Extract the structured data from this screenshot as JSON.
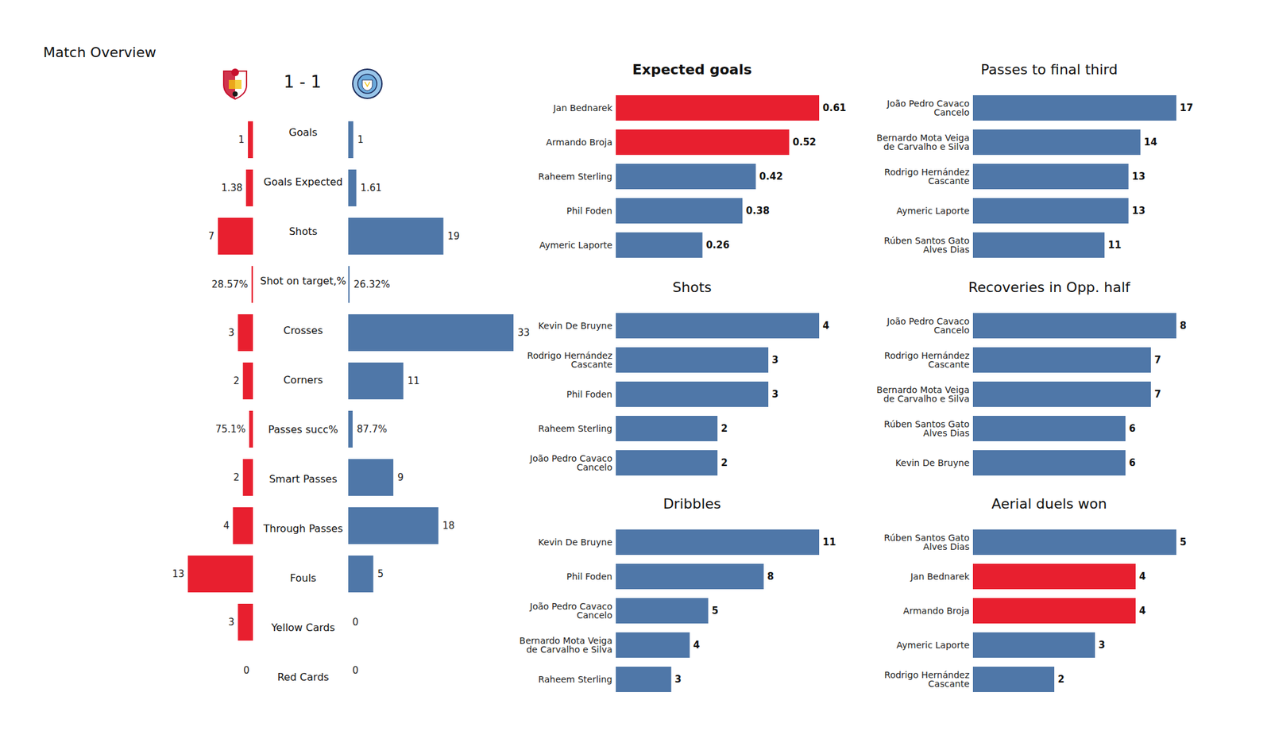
{
  "chart_data": [
    {
      "type": "bar",
      "orientation": "horizontal",
      "title": "Match Overview",
      "annotations": [
        "1 - 1"
      ],
      "categories": [
        "Goals",
        "Goals Expected",
        "Shots",
        "Shot on target,%",
        "Crosses",
        "Corners",
        "Passes succ%",
        "Smart Passes",
        "Through Passes",
        "Fouls",
        "Yellow Cards",
        "Red Cards"
      ],
      "series": [
        {
          "color": "#e81f2f",
          "values": [
            1,
            1.38,
            7,
            0.2857,
            3,
            2,
            0.751,
            2,
            4,
            13,
            3,
            0
          ],
          "value_labels": [
            "1",
            "1.38",
            "7",
            "28.57%",
            "3",
            "2",
            "75.1%",
            "2",
            "4",
            "13",
            "3",
            "0"
          ]
        },
        {
          "color": "#4f77a8",
          "values": [
            1,
            1.61,
            19,
            0.2632,
            33,
            11,
            0.877,
            9,
            18,
            5,
            0,
            0
          ],
          "value_labels": [
            "1",
            "1.61",
            "19",
            "26.32%",
            "33",
            "11",
            "87.7%",
            "9",
            "18",
            "5",
            "0",
            "0"
          ]
        }
      ],
      "xlim": [
        0,
        33
      ],
      "data_labels": true,
      "tick_labels": false
    },
    {
      "type": "bar",
      "orientation": "horizontal",
      "title": "Expected goals",
      "categories": [
        "Jan Bednarek",
        "Armando Broja",
        "Raheem Sterling",
        "Phil Foden",
        "Aymeric Laporte"
      ],
      "values": [
        0.61,
        0.52,
        0.42,
        0.38,
        0.26
      ],
      "colors": [
        "#e81f2f",
        "#e81f2f",
        "#4f77a8",
        "#4f77a8",
        "#4f77a8"
      ],
      "xlim": [
        0,
        0.61
      ],
      "data_labels": true,
      "tick_labels": "y"
    },
    {
      "type": "bar",
      "orientation": "horizontal",
      "title": "Shots",
      "categories": [
        "Kevin De Bruyne",
        "Rodrigo Hernández Cascante",
        "Phil Foden",
        "Raheem Sterling",
        "João Pedro Cavaco Cancelo"
      ],
      "values": [
        4,
        3,
        3,
        2,
        2
      ],
      "colors": [
        "#4f77a8",
        "#4f77a8",
        "#4f77a8",
        "#4f77a8",
        "#4f77a8"
      ],
      "xlim": [
        0,
        4
      ],
      "data_labels": true,
      "tick_labels": "y"
    },
    {
      "type": "bar",
      "orientation": "horizontal",
      "title": "Dribbles",
      "categories": [
        "Kevin De Bruyne",
        "Phil Foden",
        "João Pedro Cavaco Cancelo",
        "Bernardo Mota Veiga de Carvalho e Silva",
        "Raheem Sterling"
      ],
      "values": [
        11,
        8,
        5,
        4,
        3
      ],
      "colors": [
        "#4f77a8",
        "#4f77a8",
        "#4f77a8",
        "#4f77a8",
        "#4f77a8"
      ],
      "xlim": [
        0,
        11
      ],
      "data_labels": true,
      "tick_labels": "y"
    },
    {
      "type": "bar",
      "orientation": "horizontal",
      "title": "Passes to final third",
      "categories": [
        "João Pedro Cavaco Cancelo",
        "Bernardo Mota Veiga de Carvalho e Silva",
        "Rodrigo Hernández Cascante",
        "Aymeric Laporte",
        "Rúben Santos Gato Alves Dias"
      ],
      "values": [
        17,
        14,
        13,
        13,
        11
      ],
      "colors": [
        "#4f77a8",
        "#4f77a8",
        "#4f77a8",
        "#4f77a8",
        "#4f77a8"
      ],
      "xlim": [
        0,
        17
      ],
      "data_labels": true,
      "tick_labels": "y"
    },
    {
      "type": "bar",
      "orientation": "horizontal",
      "title": "Recoveries in Opp. half",
      "categories": [
        "João Pedro Cavaco Cancelo",
        "Rodrigo Hernández Cascante",
        "Bernardo Mota Veiga de Carvalho e Silva",
        "Rúben Santos Gato Alves Dias",
        "Kevin De Bruyne"
      ],
      "values": [
        8,
        7,
        7,
        6,
        6
      ],
      "colors": [
        "#4f77a8",
        "#4f77a8",
        "#4f77a8",
        "#4f77a8",
        "#4f77a8"
      ],
      "xlim": [
        0,
        8
      ],
      "data_labels": true,
      "tick_labels": "y"
    },
    {
      "type": "bar",
      "orientation": "horizontal",
      "title": "Aerial duels won",
      "categories": [
        "Rúben Santos Gato Alves Dias",
        "Jan Bednarek",
        "Armando Broja",
        "Aymeric Laporte",
        "Rodrigo Hernández Cascante"
      ],
      "values": [
        5,
        4,
        4,
        3,
        2
      ],
      "colors": [
        "#4f77a8",
        "#e81f2f",
        "#e81f2f",
        "#4f77a8",
        "#4f77a8"
      ],
      "xlim": [
        0,
        5
      ],
      "data_labels": true,
      "tick_labels": "y"
    }
  ]
}
